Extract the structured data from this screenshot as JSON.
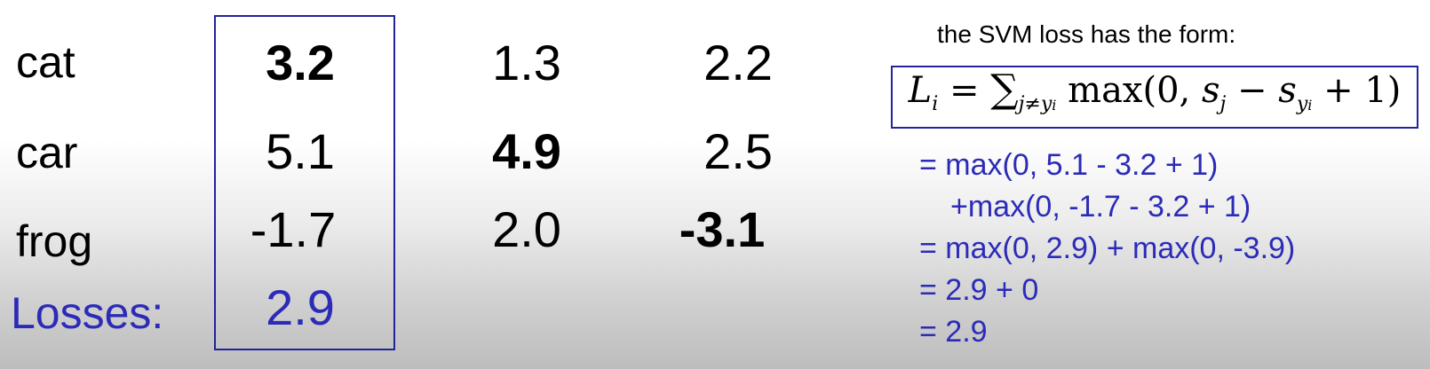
{
  "rows": {
    "cat": "cat",
    "car": "car",
    "frog": "frog",
    "losses": "Losses:"
  },
  "columns": [
    {
      "cat": "3.2",
      "car": "5.1",
      "frog": "-1.7",
      "loss": "2.9"
    },
    {
      "cat": "1.3",
      "car": "4.9",
      "frog": "2.0"
    },
    {
      "cat": "2.2",
      "car": "2.5",
      "frog": "-3.1"
    }
  ],
  "svm": {
    "title": "the SVM loss has the form:",
    "formula_text": "L_i = Σ_{j≠y_i} max(0, s_j − s_{y_i} + 1)",
    "steps": [
      "= max(0, 5.1 - 3.2 + 1)",
      "+max(0, -1.7 - 3.2 + 1)",
      "= max(0, 2.9) + max(0, -3.9)",
      "= 2.9 + 0",
      "= 2.9"
    ]
  },
  "colors": {
    "box_border": "#23239a",
    "accent_text": "#2b2bb8"
  }
}
